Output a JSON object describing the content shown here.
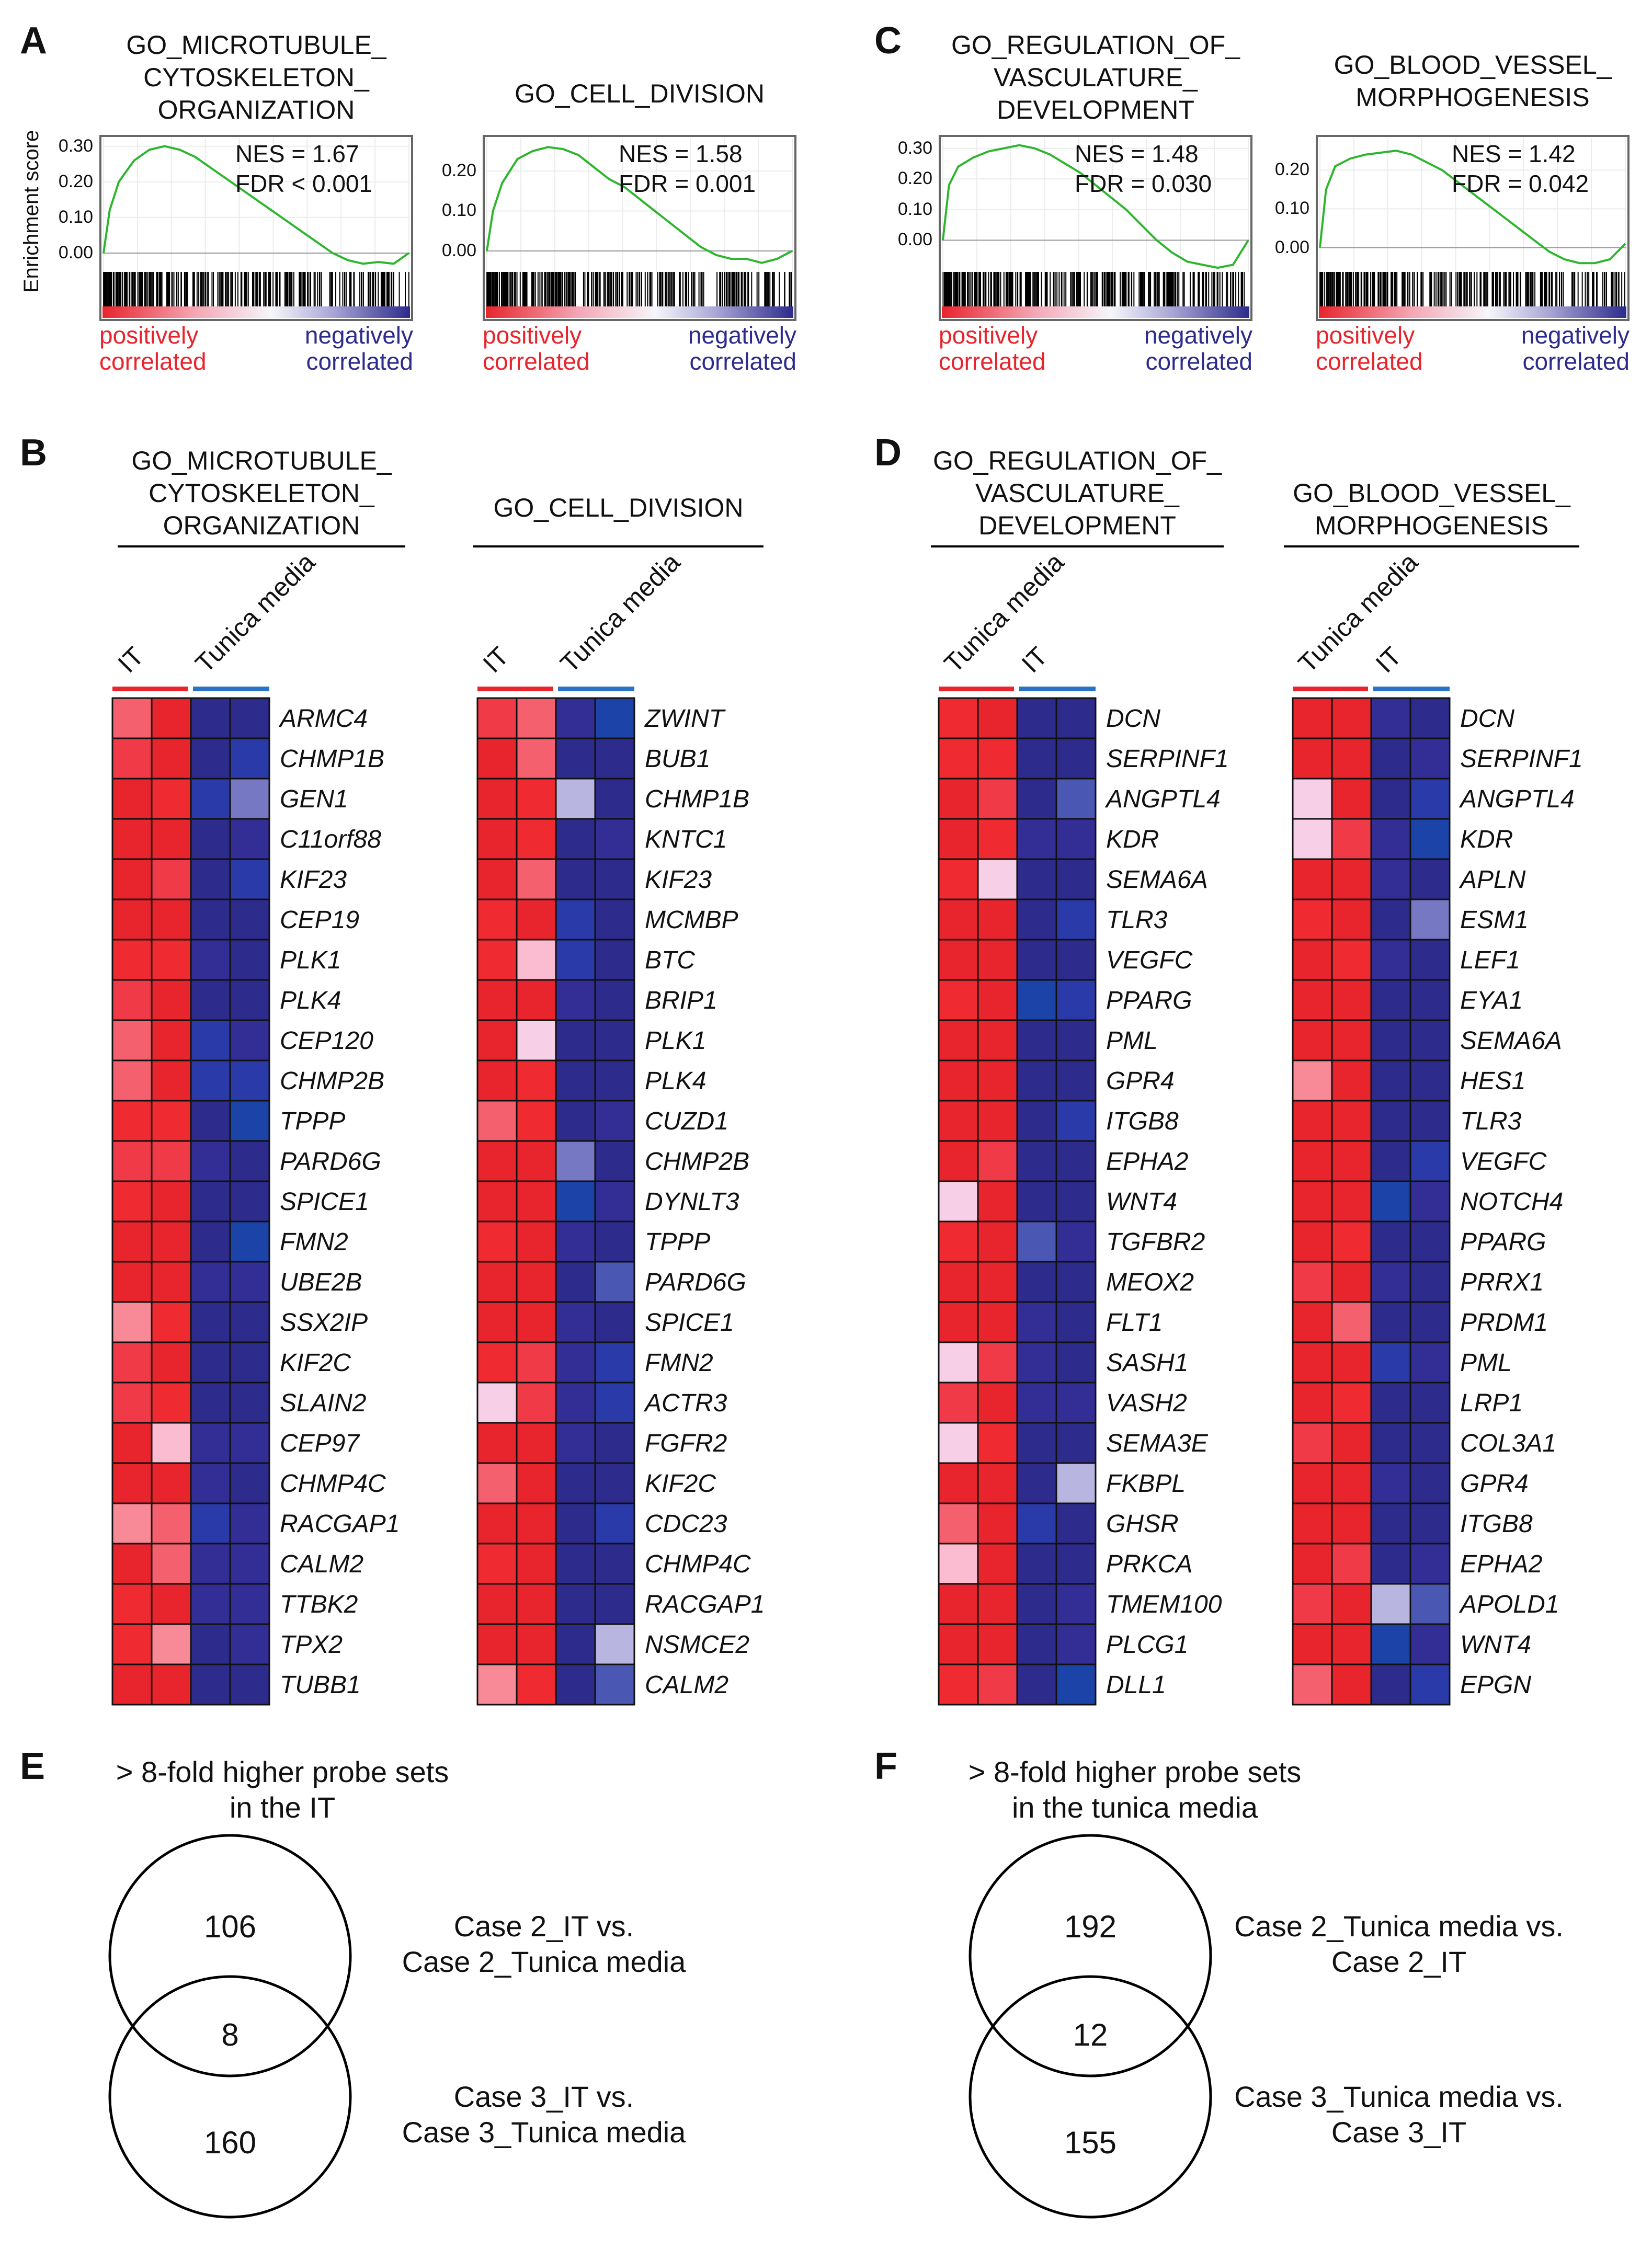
{
  "panels": {
    "A": "A",
    "B": "B",
    "C": "C",
    "D": "D",
    "E": "E",
    "F": "F"
  },
  "gsea": {
    "ylabel": "Enrichment score",
    "pos_label": [
      "positively",
      "correlated"
    ],
    "neg_label": [
      "negatively",
      "correlated"
    ],
    "plots": [
      {
        "title": [
          "GO_MICROTUBULE_",
          "CYTOSKELETON_",
          "ORGANIZATION"
        ],
        "nes": "NES = 1.67",
        "fdr": "FDR < 0.001",
        "ticks": [
          "0.30",
          "0.20",
          "0.10",
          "0.00"
        ]
      },
      {
        "title": [
          "GO_CELL_DIVISION"
        ],
        "nes": "NES = 1.58",
        "fdr": "FDR = 0.001",
        "ticks": [
          "0.20",
          "0.10",
          "0.00"
        ]
      },
      {
        "title": [
          "GO_REGULATION_OF_",
          "VASCULATURE_",
          "DEVELOPMENT"
        ],
        "nes": "NES = 1.48",
        "fdr": "FDR = 0.030",
        "ticks": [
          "0.30",
          "0.20",
          "0.10",
          "0.00"
        ]
      },
      {
        "title": [
          "GO_BLOOD_VESSEL_",
          "MORPHOGENESIS"
        ],
        "nes": "NES = 1.42",
        "fdr": "FDR = 0.042",
        "ticks": [
          "0.20",
          "0.10",
          "0.00"
        ]
      }
    ],
    "colors": {
      "curve": "#2db52d",
      "pos": "#e8242c",
      "neg": "#2d2b8c"
    }
  },
  "heatmaps": [
    {
      "title": [
        "GO_MICROTUBULE_",
        "CYTOSKELETON_",
        "ORGANIZATION"
      ],
      "groups": [
        "IT",
        "Tunica media"
      ],
      "genes": [
        "ARMC4",
        "CHMP1B",
        "GEN1",
        "C11orf88",
        "KIF23",
        "CEP19",
        "PLK1",
        "PLK4",
        "CEP120",
        "CHMP2B",
        "TPPP",
        "PARD6G",
        "SPICE1",
        "FMN2",
        "UBE2B",
        "SSX2IP",
        "KIF2C",
        "SLAIN2",
        "CEP97",
        "CHMP4C",
        "RACGAP1",
        "CALM2",
        "TTBK2",
        "TPX2",
        "TUBB1"
      ]
    },
    {
      "title": [
        "GO_CELL_DIVISION"
      ],
      "groups": [
        "IT",
        "Tunica media"
      ],
      "genes": [
        "ZWINT",
        "BUB1",
        "CHMP1B",
        "KNTC1",
        "KIF23",
        "MCMBP",
        "BTC",
        "BRIP1",
        "PLK1",
        "PLK4",
        "CUZD1",
        "CHMP2B",
        "DYNLT3",
        "TPPP",
        "PARD6G",
        "SPICE1",
        "FMN2",
        "ACTR3",
        "FGFR2",
        "KIF2C",
        "CDC23",
        "CHMP4C",
        "RACGAP1",
        "NSMCE2",
        "CALM2"
      ]
    },
    {
      "title": [
        "GO_REGULATION_OF_",
        "VASCULATURE_",
        "DEVELOPMENT"
      ],
      "groups": [
        "Tunica media",
        "IT"
      ],
      "genes": [
        "DCN",
        "SERPINF1",
        "ANGPTL4",
        "KDR",
        "SEMA6A",
        "TLR3",
        "VEGFC",
        "PPARG",
        "PML",
        "GPR4",
        "ITGB8",
        "EPHA2",
        "WNT4",
        "TGFBR2",
        "MEOX2",
        "FLT1",
        "SASH1",
        "VASH2",
        "SEMA3E",
        "FKBPL",
        "GHSR",
        "PRKCA",
        "TMEM100",
        "PLCG1",
        "DLL1"
      ]
    },
    {
      "title": [
        "GO_BLOOD_VESSEL_",
        "MORPHOGENESIS"
      ],
      "groups": [
        "Tunica media",
        "IT"
      ],
      "genes": [
        "DCN",
        "SERPINF1",
        "ANGPTL4",
        "KDR",
        "APLN",
        "ESM1",
        "LEF1",
        "EYA1",
        "SEMA6A",
        "HES1",
        "TLR3",
        "VEGFC",
        "NOTCH4",
        "PPARG",
        "PRRX1",
        "PRDM1",
        "PML",
        "LRP1",
        "COL3A1",
        "GPR4",
        "ITGB8",
        "EPHA2",
        "APOLD1",
        "WNT4",
        "EPGN"
      ]
    }
  ],
  "venn": [
    {
      "header": [
        "> 8-fold higher probe sets",
        "in the IT"
      ],
      "top": "106",
      "overlap": "8",
      "bottom": "160",
      "top_label": [
        "Case 2_IT vs.",
        "Case 2_Tunica media"
      ],
      "bottom_label": [
        "Case 3_IT vs.",
        "Case 3_Tunica media"
      ]
    },
    {
      "header": [
        "> 8-fold higher probe sets",
        "in the tunica media"
      ],
      "top": "192",
      "overlap": "12",
      "bottom": "155",
      "top_label": [
        "Case 2_Tunica media vs.",
        "Case 2_IT"
      ],
      "bottom_label": [
        "Case 3_Tunica media vs.",
        "Case 3_IT"
      ]
    }
  ],
  "chart_data": [
    {
      "type": "line",
      "title": "GO_MICROTUBULE_CYTOSKELETON_ORGANIZATION",
      "ylabel": "Enrichment score",
      "ylim": [
        -0.05,
        0.32
      ],
      "x": [
        0,
        0.02,
        0.05,
        0.1,
        0.15,
        0.2,
        0.25,
        0.3,
        0.35,
        0.4,
        0.45,
        0.5,
        0.55,
        0.6,
        0.65,
        0.7,
        0.75,
        0.8,
        0.85,
        0.9,
        0.95,
        1.0
      ],
      "series": [
        {
          "values": [
            0.0,
            0.12,
            0.2,
            0.26,
            0.29,
            0.3,
            0.29,
            0.27,
            0.24,
            0.21,
            0.18,
            0.15,
            0.12,
            0.09,
            0.06,
            0.03,
            0.0,
            -0.02,
            -0.03,
            -0.025,
            -0.03,
            0.0
          ]
        }
      ],
      "annotations": [
        "NES = 1.67",
        "FDR < 0.001"
      ]
    },
    {
      "type": "line",
      "title": "GO_CELL_DIVISION",
      "ylim": [
        -0.05,
        0.28
      ],
      "x": [
        0,
        0.02,
        0.05,
        0.1,
        0.15,
        0.2,
        0.25,
        0.3,
        0.35,
        0.4,
        0.45,
        0.5,
        0.55,
        0.6,
        0.65,
        0.7,
        0.75,
        0.8,
        0.85,
        0.9,
        0.95,
        1.0
      ],
      "series": [
        {
          "values": [
            0.0,
            0.1,
            0.17,
            0.23,
            0.25,
            0.26,
            0.255,
            0.24,
            0.21,
            0.18,
            0.16,
            0.13,
            0.1,
            0.07,
            0.04,
            0.01,
            -0.01,
            -0.02,
            -0.02,
            -0.03,
            -0.02,
            0.0
          ]
        }
      ],
      "annotations": [
        "NES = 1.58",
        "FDR = 0.001"
      ]
    },
    {
      "type": "line",
      "title": "GO_REGULATION_OF_VASCULATURE_DEVELOPMENT",
      "ylim": [
        -0.1,
        0.33
      ],
      "x": [
        0,
        0.02,
        0.05,
        0.1,
        0.15,
        0.2,
        0.25,
        0.3,
        0.35,
        0.4,
        0.45,
        0.5,
        0.55,
        0.6,
        0.65,
        0.7,
        0.75,
        0.8,
        0.85,
        0.9,
        0.95,
        1.0
      ],
      "series": [
        {
          "values": [
            0.0,
            0.18,
            0.24,
            0.27,
            0.29,
            0.3,
            0.31,
            0.3,
            0.28,
            0.25,
            0.22,
            0.18,
            0.14,
            0.1,
            0.05,
            0.0,
            -0.04,
            -0.07,
            -0.08,
            -0.09,
            -0.08,
            0.0
          ]
        }
      ],
      "annotations": [
        "NES = 1.48",
        "FDR = 0.030"
      ]
    },
    {
      "type": "line",
      "title": "GO_BLOOD_VESSEL_MORPHOGENESIS",
      "ylim": [
        -0.06,
        0.28
      ],
      "x": [
        0,
        0.02,
        0.05,
        0.1,
        0.15,
        0.2,
        0.25,
        0.3,
        0.35,
        0.4,
        0.45,
        0.5,
        0.55,
        0.6,
        0.65,
        0.7,
        0.75,
        0.8,
        0.85,
        0.9,
        0.95,
        1.0
      ],
      "series": [
        {
          "values": [
            0.0,
            0.15,
            0.21,
            0.23,
            0.24,
            0.245,
            0.25,
            0.24,
            0.22,
            0.2,
            0.17,
            0.14,
            0.11,
            0.08,
            0.05,
            0.02,
            -0.01,
            -0.03,
            -0.04,
            -0.04,
            -0.03,
            0.01
          ]
        }
      ],
      "annotations": [
        "NES = 1.42",
        "FDR = 0.042"
      ]
    }
  ]
}
